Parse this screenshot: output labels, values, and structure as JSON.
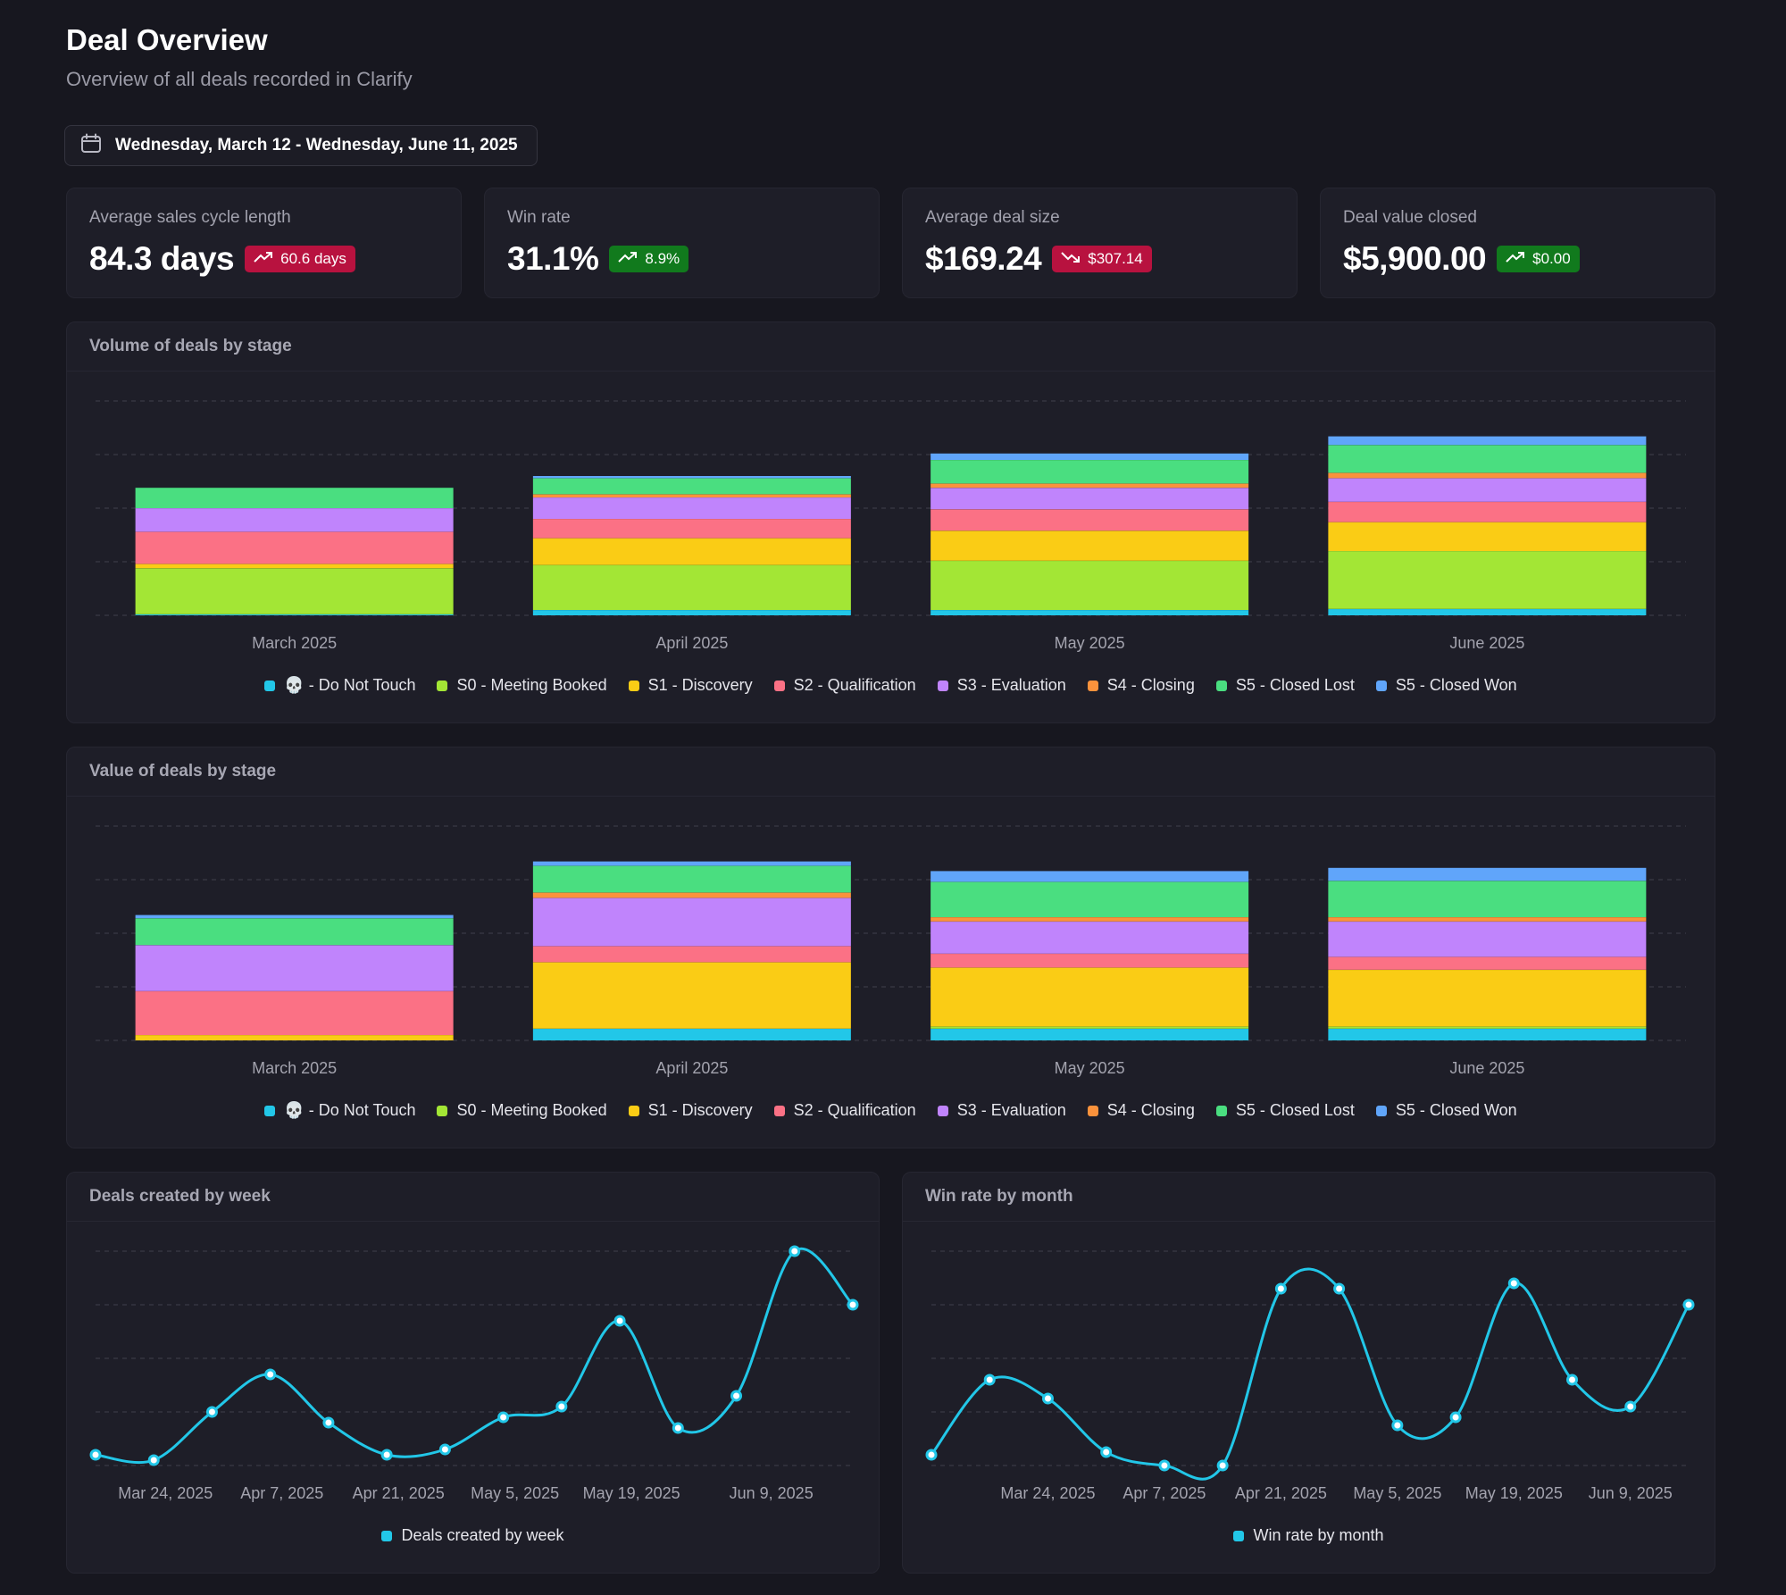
{
  "page": {
    "title": "Deal Overview",
    "subtitle": "Overview of all deals recorded in Clarify",
    "date_range": "Wednesday, March 12 - Wednesday, June 11, 2025"
  },
  "kpis": [
    {
      "label": "Average sales cycle length",
      "value": "84.3 days",
      "delta": "60.6 days",
      "trend": "up",
      "tone": "red"
    },
    {
      "label": "Win rate",
      "value": "31.1%",
      "delta": "8.9%",
      "trend": "up",
      "tone": "green"
    },
    {
      "label": "Average deal size",
      "value": "$169.24",
      "delta": "$307.14",
      "trend": "down",
      "tone": "red"
    },
    {
      "label": "Deal value closed",
      "value": "$5,900.00",
      "delta": "$0.00",
      "trend": "up",
      "tone": "green"
    }
  ],
  "stages": [
    {
      "name": "💀 - Do Not Touch",
      "color": "#22c7e8"
    },
    {
      "name": "S0 - Meeting Booked",
      "color": "#a3e635"
    },
    {
      "name": "S1 - Discovery",
      "color": "#facc15"
    },
    {
      "name": "S2 - Qualification",
      "color": "#fb7185"
    },
    {
      "name": "S3 - Evaluation",
      "color": "#c084fc"
    },
    {
      "name": "S4 - Closing",
      "color": "#fb923c"
    },
    {
      "name": "S5 - Closed Lost",
      "color": "#4ade80"
    },
    {
      "name": "S5 - Closed Won",
      "color": "#60a5fa"
    }
  ],
  "charts": {
    "volume_title": "Volume of deals by stage",
    "value_title": "Value of deals by stage",
    "weekly_title": "Deals created by week",
    "winrate_title": "Win rate by month"
  },
  "chart_data": [
    {
      "type": "bar",
      "stacked": true,
      "title": "Volume of deals by stage",
      "categories": [
        "March 2025",
        "April 2025",
        "May 2025",
        "June 2025"
      ],
      "ylim": [
        0,
        200
      ],
      "gridlines": 4,
      "series": [
        {
          "name": "💀 - Do Not Touch",
          "values": [
            1,
            5,
            5,
            6
          ]
        },
        {
          "name": "S0 - Meeting Booked",
          "values": [
            43,
            42,
            46,
            54
          ]
        },
        {
          "name": "S1 - Discovery",
          "values": [
            4,
            25,
            28,
            27
          ]
        },
        {
          "name": "S2 - Qualification",
          "values": [
            30,
            18,
            20,
            19
          ]
        },
        {
          "name": "S3 - Evaluation",
          "values": [
            22,
            20,
            20,
            22
          ]
        },
        {
          "name": "S4 - Closing",
          "values": [
            0,
            3,
            4,
            5
          ]
        },
        {
          "name": "S5 - Closed Lost",
          "values": [
            19,
            15,
            22,
            26
          ]
        },
        {
          "name": "S5 - Closed Won",
          "values": [
            0,
            2,
            6,
            8
          ]
        }
      ]
    },
    {
      "type": "bar",
      "stacked": true,
      "title": "Value of deals by stage",
      "categories": [
        "March 2025",
        "April 2025",
        "May 2025",
        "June 2025"
      ],
      "ylim": [
        0,
        200
      ],
      "gridlines": 4,
      "series": [
        {
          "name": "💀 - Do Not Touch",
          "values": [
            0,
            11,
            11,
            11
          ]
        },
        {
          "name": "S0 - Meeting Booked",
          "values": [
            0,
            0,
            2,
            2
          ]
        },
        {
          "name": "S1 - Discovery",
          "values": [
            5,
            62,
            55,
            53
          ]
        },
        {
          "name": "S2 - Qualification",
          "values": [
            41,
            15,
            13,
            12
          ]
        },
        {
          "name": "S3 - Evaluation",
          "values": [
            43,
            45,
            30,
            33
          ]
        },
        {
          "name": "S4 - Closing",
          "values": [
            0,
            5,
            4,
            4
          ]
        },
        {
          "name": "S5 - Closed Lost",
          "values": [
            25,
            25,
            33,
            34
          ]
        },
        {
          "name": "S5 - Closed Won",
          "values": [
            3,
            4,
            10,
            12
          ]
        }
      ]
    },
    {
      "type": "line",
      "title": "Deals created by week",
      "series_name": "Deals created by week",
      "x": [
        0,
        1,
        2,
        3,
        4,
        5,
        6,
        7,
        8,
        9,
        10,
        11,
        12,
        13
      ],
      "values": [
        2,
        1,
        10,
        17,
        8,
        2,
        3,
        9,
        11,
        27,
        7,
        13,
        40,
        30
      ],
      "ylim": [
        0,
        40
      ],
      "gridlines": 4,
      "tick_positions": [
        1.2,
        3.2,
        5.2,
        7.2,
        9.2,
        11.6
      ],
      "x_tick_labels": [
        "Mar 24, 2025",
        "Apr 7, 2025",
        "Apr 21, 2025",
        "May 5, 2025",
        "May 19, 2025",
        "Jun 9, 2025"
      ]
    },
    {
      "type": "line",
      "title": "Win rate by month",
      "series_name": "Win rate by month",
      "x": [
        0,
        1,
        2,
        3,
        4,
        5,
        6,
        7,
        8,
        9,
        10,
        11,
        12,
        13
      ],
      "values": [
        2,
        16,
        12.5,
        2.5,
        0,
        0,
        33,
        33,
        7.5,
        9,
        34,
        16,
        11,
        30
      ],
      "ylim": [
        0,
        40
      ],
      "gridlines": 4,
      "tick_positions": [
        2,
        4,
        6,
        8,
        10,
        12
      ],
      "x_tick_labels": [
        "Mar 24, 2025",
        "Apr 7, 2025",
        "Apr 21, 2025",
        "May 5, 2025",
        "May 19, 2025",
        "Jun 9, 2025"
      ]
    }
  ]
}
